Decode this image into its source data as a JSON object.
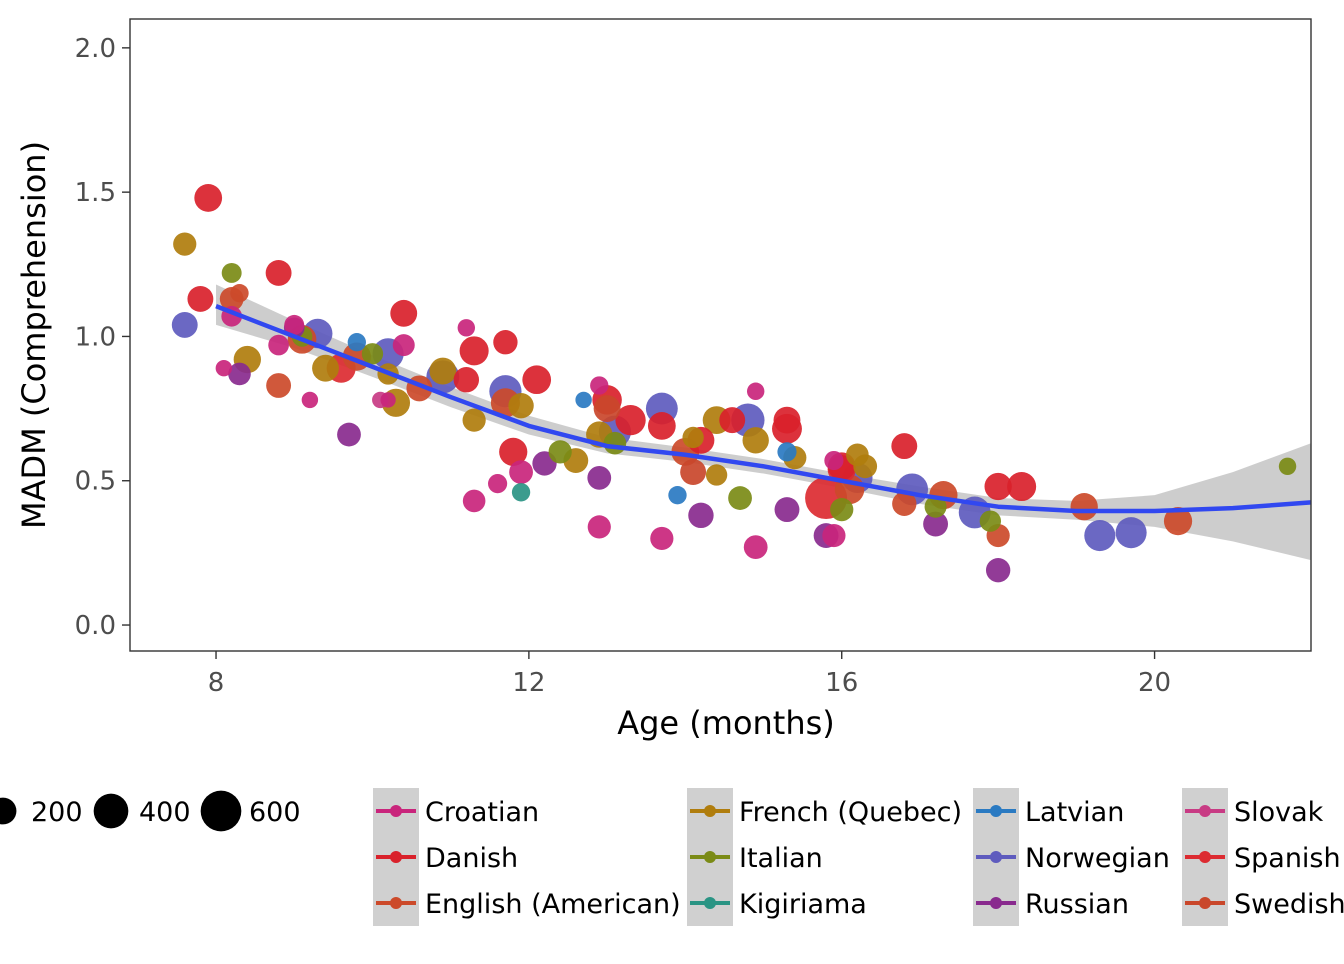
{
  "chart_data": {
    "type": "scatter",
    "xlabel": "Age (months)",
    "ylabel": "MADM (Comprehension)",
    "xlim": [
      6.9,
      22.0
    ],
    "ylim": [
      -0.09,
      2.1
    ],
    "x_ticks": [
      8,
      12,
      16,
      20
    ],
    "y_ticks": [
      0.0,
      0.5,
      1.0,
      1.5,
      2.0
    ],
    "x_tick_labels": [
      "8",
      "12",
      "16",
      "20"
    ],
    "y_tick_labels": [
      "0.0",
      "0.5",
      "1.0",
      "1.5",
      "2.0"
    ],
    "grid": false,
    "legend_position": "bottom",
    "size_legend": {
      "values": [
        200,
        400,
        600
      ],
      "labels": [
        "200",
        "400",
        "600"
      ]
    },
    "series": [
      {
        "name": "Croatian",
        "color": "#c9257c",
        "points": [
          [
            8.8,
            0.97,
            90
          ],
          [
            8.1,
            0.89,
            40
          ],
          [
            8.2,
            1.07,
            90
          ],
          [
            9.0,
            1.04,
            80
          ],
          [
            9.2,
            0.78,
            40
          ],
          [
            10.2,
            0.78,
            30
          ],
          [
            10.4,
            0.97,
            110
          ],
          [
            11.2,
            1.03,
            50
          ],
          [
            11.3,
            0.43,
            120
          ],
          [
            11.6,
            0.49,
            70
          ],
          [
            11.9,
            0.53,
            140
          ],
          [
            12.9,
            0.83,
            60
          ],
          [
            12.9,
            0.34,
            130
          ],
          [
            13.7,
            0.3,
            130
          ],
          [
            14.9,
            0.27,
            140
          ],
          [
            14.9,
            0.81,
            50
          ],
          [
            15.9,
            0.57,
            70
          ],
          [
            15.9,
            0.31,
            130
          ]
        ]
      },
      {
        "name": "Danish",
        "color": "#d9212b",
        "points": [
          [
            7.9,
            1.48,
            220
          ],
          [
            7.8,
            1.13,
            180
          ],
          [
            8.8,
            1.22,
            180
          ],
          [
            10.4,
            1.08,
            200
          ],
          [
            11.2,
            0.85,
            170
          ],
          [
            11.3,
            0.95,
            250
          ],
          [
            11.7,
            0.98,
            150
          ],
          [
            11.8,
            0.6,
            230
          ],
          [
            12.1,
            0.85,
            240
          ],
          [
            13.0,
            0.78,
            260
          ],
          [
            13.3,
            0.71,
            280
          ],
          [
            13.7,
            0.69,
            220
          ],
          [
            14.2,
            0.64,
            200
          ],
          [
            14.6,
            0.71,
            180
          ],
          [
            15.3,
            0.71,
            200
          ],
          [
            15.3,
            0.68,
            270
          ],
          [
            16.0,
            0.55,
            220
          ],
          [
            16.8,
            0.62,
            180
          ],
          [
            18.0,
            0.48,
            210
          ],
          [
            18.3,
            0.48,
            250
          ]
        ]
      },
      {
        "name": "English (American)",
        "color": "#cc4a2a",
        "points": [
          [
            8.2,
            1.13,
            140
          ],
          [
            8.3,
            1.15,
            60
          ],
          [
            8.8,
            0.83,
            160
          ],
          [
            9.1,
            0.99,
            240
          ],
          [
            9.8,
            0.93,
            230
          ],
          [
            10.6,
            0.82,
            180
          ],
          [
            11.7,
            0.77,
            250
          ],
          [
            14.0,
            0.6,
            220
          ],
          [
            16.1,
            0.47,
            260
          ],
          [
            16.8,
            0.42,
            150
          ],
          [
            17.3,
            0.45,
            230
          ],
          [
            18.0,
            0.31,
            130
          ],
          [
            19.1,
            0.41,
            210
          ],
          [
            20.3,
            0.36,
            230
          ]
        ]
      },
      {
        "name": "French (Quebec)",
        "color": "#b07d0d",
        "points": [
          [
            7.6,
            1.32,
            130
          ],
          [
            8.4,
            0.92,
            210
          ],
          [
            9.4,
            0.89,
            200
          ],
          [
            10.2,
            0.87,
            100
          ],
          [
            10.3,
            0.77,
            230
          ],
          [
            10.9,
            0.88,
            200
          ],
          [
            11.3,
            0.71,
            130
          ],
          [
            11.9,
            0.76,
            170
          ],
          [
            12.6,
            0.57,
            160
          ],
          [
            12.9,
            0.66,
            190
          ],
          [
            14.1,
            0.65,
            100
          ],
          [
            14.4,
            0.71,
            220
          ],
          [
            14.4,
            0.52,
            100
          ],
          [
            14.9,
            0.64,
            190
          ],
          [
            15.4,
            0.58,
            130
          ],
          [
            16.2,
            0.59,
            120
          ],
          [
            16.3,
            0.55,
            140
          ]
        ]
      },
      {
        "name": "Italian",
        "color": "#7b8b16",
        "points": [
          [
            8.2,
            1.22,
            80
          ],
          [
            9.1,
            1.0,
            90
          ],
          [
            10.0,
            0.94,
            100
          ],
          [
            12.4,
            0.6,
            130
          ],
          [
            13.1,
            0.63,
            120
          ],
          [
            14.7,
            0.44,
            140
          ],
          [
            16.0,
            0.4,
            130
          ],
          [
            17.2,
            0.41,
            110
          ],
          [
            17.9,
            0.36,
            100
          ],
          [
            21.7,
            0.55,
            50
          ]
        ]
      },
      {
        "name": "Kigiriama",
        "color": "#2a9484",
        "points": [
          [
            11.9,
            0.46,
            60
          ]
        ]
      },
      {
        "name": "Latvian",
        "color": "#2a7ac2",
        "points": [
          [
            9.8,
            0.98,
            60
          ],
          [
            12.7,
            0.78,
            40
          ],
          [
            13.9,
            0.45,
            60
          ],
          [
            15.3,
            0.6,
            70
          ]
        ]
      },
      {
        "name": "Norwegian",
        "color": "#5e5bbe",
        "points": [
          [
            7.6,
            1.04,
            180
          ],
          [
            9.3,
            1.01,
            260
          ],
          [
            10.2,
            0.94,
            300
          ],
          [
            10.9,
            0.86,
            350
          ],
          [
            11.7,
            0.81,
            330
          ],
          [
            13.1,
            0.67,
            330
          ],
          [
            13.7,
            0.75,
            320
          ],
          [
            14.8,
            0.71,
            360
          ],
          [
            16.2,
            0.51,
            280
          ],
          [
            16.9,
            0.47,
            320
          ],
          [
            17.7,
            0.39,
            320
          ],
          [
            19.3,
            0.31,
            300
          ],
          [
            19.7,
            0.32,
            300
          ]
        ]
      },
      {
        "name": "Russian",
        "color": "#892a8e",
        "points": [
          [
            8.3,
            0.87,
            120
          ],
          [
            9.0,
            1.03,
            90
          ],
          [
            9.7,
            0.66,
            140
          ],
          [
            12.2,
            0.56,
            150
          ],
          [
            12.9,
            0.51,
            140
          ],
          [
            14.2,
            0.38,
            170
          ],
          [
            15.3,
            0.4,
            160
          ],
          [
            15.8,
            0.31,
            160
          ],
          [
            17.2,
            0.35,
            160
          ],
          [
            18.0,
            0.19,
            150
          ]
        ]
      },
      {
        "name": "Slovak",
        "color": "#c83b84",
        "points": [
          [
            10.1,
            0.78,
            40
          ]
        ]
      },
      {
        "name": "Spanish",
        "color": "#dc2b31",
        "points": [
          [
            9.6,
            0.89,
            250
          ],
          [
            15.8,
            0.44,
            650
          ],
          [
            16.0,
            0.54,
            230
          ]
        ]
      },
      {
        "name": "Swedish",
        "color": "#c9472b",
        "points": [
          [
            13.0,
            0.75,
            200
          ],
          [
            14.1,
            0.53,
            180
          ]
        ]
      }
    ],
    "smooth_line": {
      "x": [
        8.0,
        9.0,
        10.0,
        11.0,
        12.0,
        13.0,
        14.0,
        15.0,
        16.0,
        17.0,
        18.0,
        19.0,
        20.0,
        21.0,
        22.0
      ],
      "y": [
        1.105,
        1.0,
        0.895,
        0.79,
        0.69,
        0.62,
        0.59,
        0.55,
        0.5,
        0.45,
        0.41,
        0.395,
        0.395,
        0.405,
        0.425
      ],
      "ci_lower": [
        1.04,
        0.96,
        0.86,
        0.755,
        0.66,
        0.595,
        0.565,
        0.525,
        0.475,
        0.42,
        0.38,
        0.365,
        0.34,
        0.29,
        0.225
      ],
      "ci_upper": [
        1.18,
        1.055,
        0.935,
        0.825,
        0.725,
        0.65,
        0.615,
        0.575,
        0.525,
        0.48,
        0.44,
        0.43,
        0.45,
        0.53,
        0.63
      ],
      "color": "#3148f0",
      "band_color": "#c8c8c8"
    }
  }
}
